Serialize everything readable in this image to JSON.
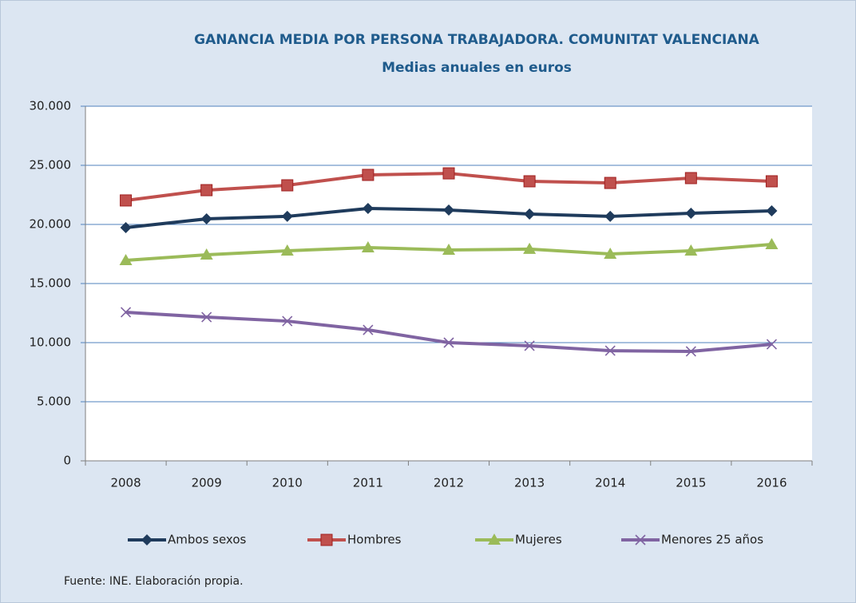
{
  "chart_data": {
    "type": "line",
    "title": "GANANCIA MEDIA POR PERSONA TRABAJADORA. COMUNITAT VALENCIANA",
    "subtitle": "Medias anuales en euros",
    "categories": [
      "2008",
      "2009",
      "2010",
      "2011",
      "2012",
      "2013",
      "2014",
      "2015",
      "2016"
    ],
    "series": [
      {
        "name": "Ambos sexos",
        "color": "#1f3b5c",
        "marker": "diamond",
        "values": [
          19730,
          20470,
          20680,
          21350,
          21220,
          20880,
          20680,
          20950,
          21150
        ]
      },
      {
        "name": "Hombres",
        "color": "#c0504d",
        "marker": "square",
        "values": [
          22030,
          22900,
          23310,
          24190,
          24320,
          23650,
          23510,
          23920,
          23650
        ]
      },
      {
        "name": "Mujeres",
        "color": "#9bbb59",
        "marker": "triangle",
        "values": [
          16960,
          17430,
          17770,
          18040,
          17840,
          17910,
          17500,
          17770,
          18310
        ]
      },
      {
        "name": "Menores 25 años",
        "color": "#8064a2",
        "marker": "x",
        "values": [
          12570,
          12160,
          11820,
          11080,
          10000,
          9730,
          9320,
          9260,
          9860
        ]
      }
    ],
    "ylim": [
      0,
      30000
    ],
    "yticks": [
      0,
      {
        "value": 5000,
        "label": "5.000"
      },
      {
        "value": 10000,
        "label": "10.000"
      },
      {
        "value": 15000,
        "label": "15.000"
      },
      {
        "value": 20000,
        "label": "20.000"
      },
      {
        "value": 25000,
        "label": "25.000"
      },
      {
        "value": 30000,
        "label": "30.000"
      }
    ],
    "grid": true,
    "legend": "bottom",
    "source": "Fuente: INE. Elaboración propia."
  }
}
